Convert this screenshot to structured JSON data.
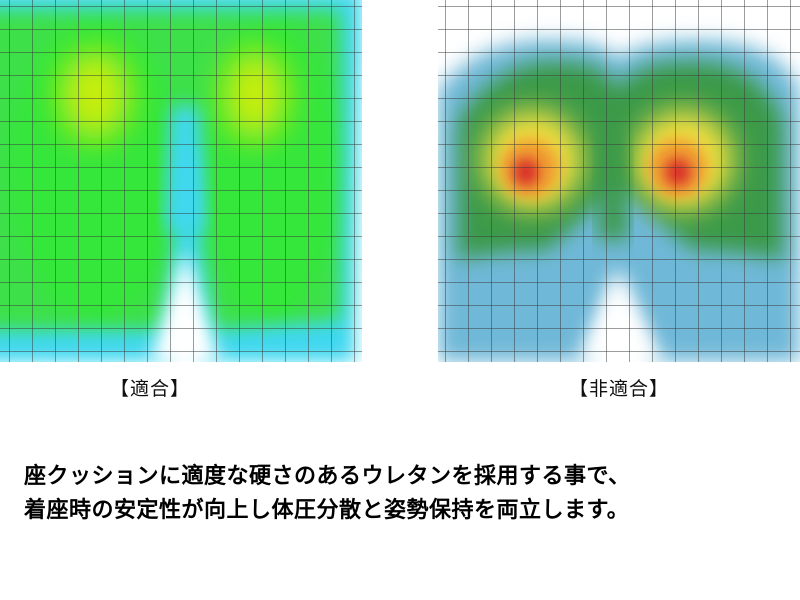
{
  "captions": {
    "left": "【適合】",
    "right": "【非適合】"
  },
  "description": {
    "line1": "座クッションに適度な硬さのあるウレタンを採用する事で、",
    "line2": "着座時の安定性が向上し体圧分散と姿勢保持を両立します。"
  },
  "colors": {
    "grid": "#3a3a3a",
    "left_map": [
      "#3fd8f0",
      "#3fe060",
      "#33e838",
      "#9ee820",
      "#d8f000"
    ],
    "right_map": [
      "#6fb8d8",
      "#3a9a4a",
      "#f0e040",
      "#f0a030",
      "#d82a2a"
    ]
  }
}
